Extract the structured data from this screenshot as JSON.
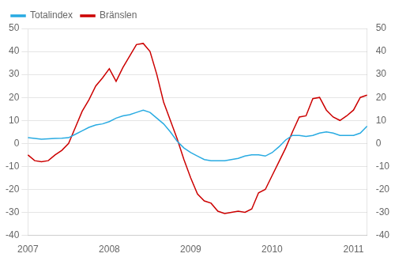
{
  "chart_data": {
    "type": "line",
    "categories": [
      "2007",
      null,
      null,
      null,
      null,
      null,
      null,
      null,
      null,
      null,
      null,
      null,
      "2008",
      null,
      null,
      null,
      null,
      null,
      null,
      null,
      null,
      null,
      null,
      null,
      "2009",
      null,
      null,
      null,
      null,
      null,
      null,
      null,
      null,
      null,
      null,
      null,
      "2010",
      null,
      null,
      null,
      null,
      null,
      null,
      null,
      null,
      null,
      null,
      null,
      "2011",
      null,
      null
    ],
    "series": [
      {
        "name": "Totalindex",
        "color": "#29ABE2",
        "values": [
          2.5,
          2.2,
          1.8,
          2.0,
          2.2,
          2.3,
          2.5,
          4.0,
          5.5,
          7.0,
          8.0,
          8.5,
          9.5,
          11.0,
          12.0,
          12.5,
          13.5,
          14.5,
          13.5,
          11.0,
          8.5,
          5.0,
          1.0,
          -2.0,
          -4.0,
          -5.5,
          -7.0,
          -7.5,
          -7.5,
          -7.5,
          -7.0,
          -6.5,
          -5.5,
          -5.0,
          -5.0,
          -5.5,
          -4.0,
          -1.5,
          1.5,
          3.5,
          3.5,
          3.0,
          3.5,
          4.5,
          5.0,
          4.5,
          3.5,
          3.5,
          3.5,
          4.5,
          7.5
        ]
      },
      {
        "name": "Bränslen",
        "color": "#CC0000",
        "values": [
          -5.0,
          -7.5,
          -8.0,
          -7.5,
          -5.0,
          -3.0,
          0.0,
          7.0,
          14.0,
          19.0,
          25.0,
          28.5,
          32.5,
          27.0,
          33.0,
          38.0,
          43.0,
          43.5,
          40.0,
          30.0,
          18.0,
          10.0,
          2.0,
          -7.0,
          -15.0,
          -22.0,
          -25.0,
          -26.0,
          -29.5,
          -30.5,
          -30.0,
          -29.5,
          -30.0,
          -28.5,
          -21.5,
          -20.0,
          -14.0,
          -8.0,
          -2.0,
          5.0,
          11.5,
          12.0,
          19.5,
          20.0,
          14.5,
          11.5,
          10.0,
          12.0,
          14.5,
          20.0,
          21.0
        ]
      }
    ],
    "ylim": [
      -40,
      50
    ],
    "yticks": [
      -40,
      -30,
      -20,
      -10,
      0,
      10,
      20,
      30,
      40,
      50
    ],
    "y2lim": [
      -40,
      50
    ],
    "y2ticks": [
      -40,
      -30,
      -20,
      -10,
      0,
      10,
      20,
      30,
      40,
      50
    ],
    "grid": true,
    "legend": "upper left"
  }
}
